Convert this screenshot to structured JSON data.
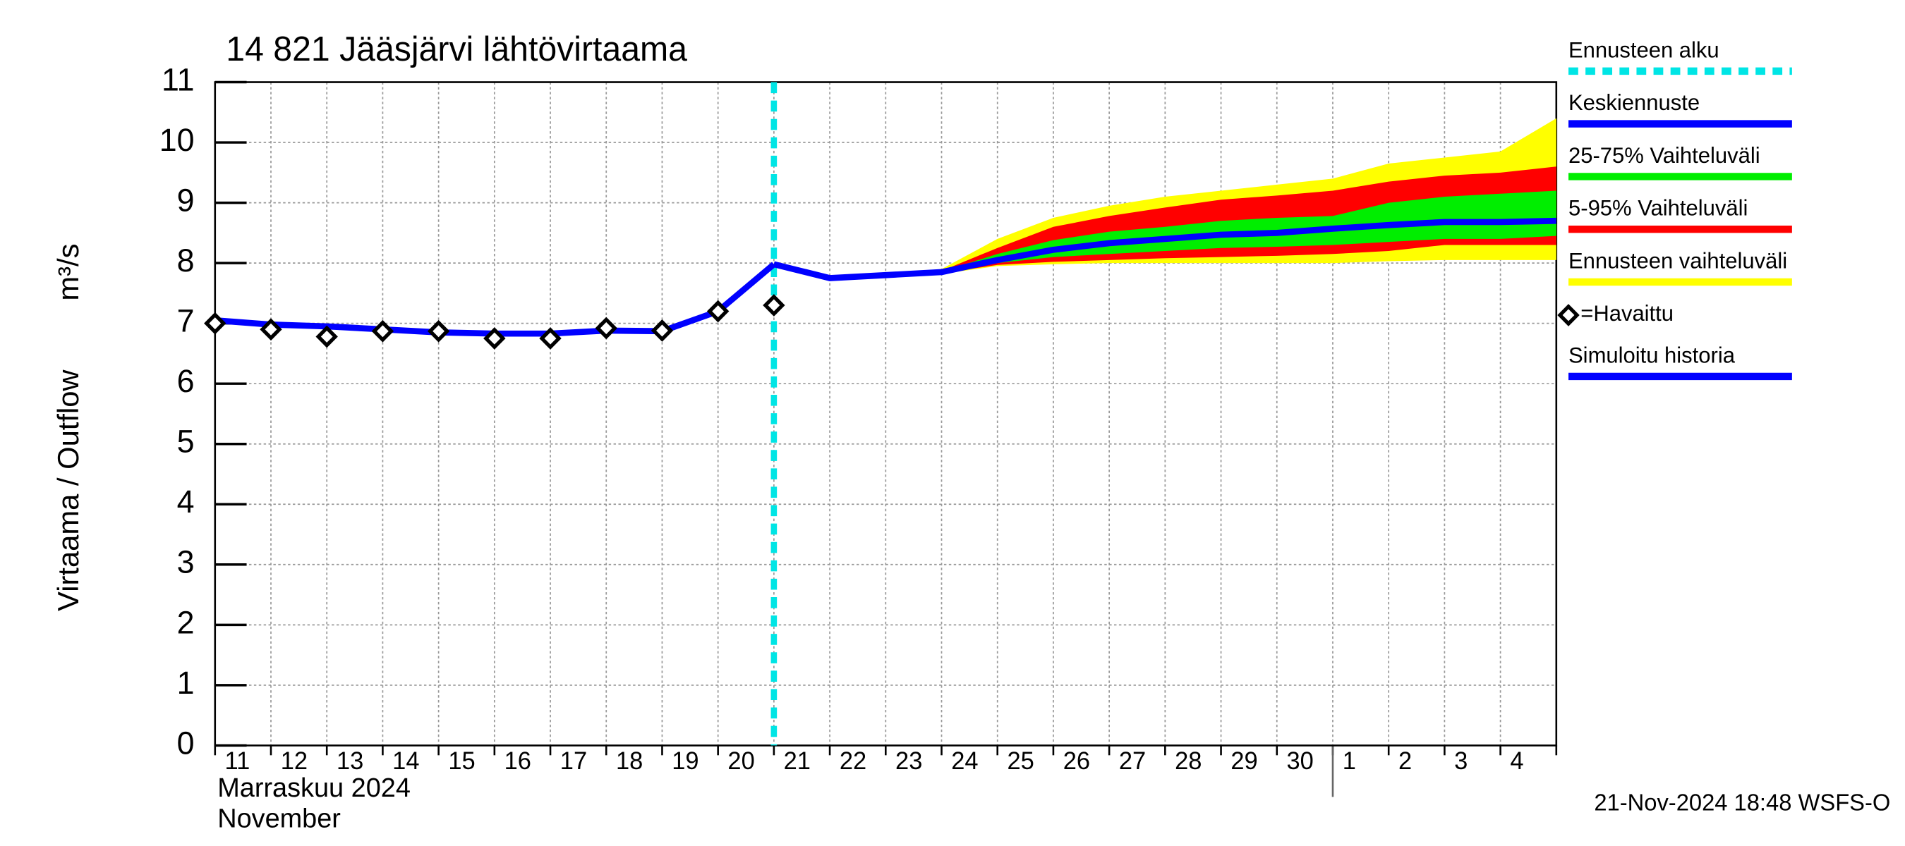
{
  "chart_data": {
    "type": "line",
    "title": "14 821 Jääsjärvi lähtövirtaama",
    "y_label": "Virtaama / Outflow",
    "y_unit": "m³/s",
    "month_label": "Marraskuu 2024",
    "month_label_en": "November",
    "timestamp": "21-Nov-2024 18:48 WSFS-O",
    "categories": [
      "11",
      "12",
      "13",
      "14",
      "15",
      "16",
      "17",
      "18",
      "19",
      "20",
      "21",
      "22",
      "23",
      "24",
      "25",
      "26",
      "27",
      "28",
      "29",
      "30",
      "1",
      "2",
      "3",
      "4",
      null
    ],
    "month_break": "1",
    "ylim": [
      0,
      11
    ],
    "yticks": [
      0,
      1,
      2,
      3,
      4,
      5,
      6,
      7,
      8,
      9,
      10,
      11
    ],
    "grid": true,
    "forecast_start": {
      "name": "Ennusteen alku",
      "color": "#00e5e5",
      "at": "21"
    },
    "bands": [
      {
        "name": "Ennusteen vaihteluväli",
        "color": "#ffff00",
        "low": [
          null,
          null,
          null,
          null,
          null,
          null,
          null,
          null,
          null,
          null,
          7.98,
          7.75,
          7.78,
          7.82,
          7.95,
          7.98,
          8.0,
          8.0,
          8.0,
          8.0,
          8.0,
          8.03,
          8.05,
          8.05,
          8.05
        ],
        "high": [
          null,
          null,
          null,
          null,
          null,
          null,
          null,
          null,
          null,
          null,
          7.98,
          7.78,
          7.83,
          7.9,
          8.4,
          8.75,
          8.95,
          9.1,
          9.2,
          9.3,
          9.4,
          9.65,
          9.75,
          9.85,
          10.4
        ]
      },
      {
        "name": "5-95% Vaihteluväli",
        "color": "#ff0000",
        "low": [
          null,
          null,
          null,
          null,
          null,
          null,
          null,
          null,
          null,
          null,
          7.98,
          7.75,
          7.78,
          7.83,
          7.97,
          8.02,
          8.05,
          8.08,
          8.1,
          8.12,
          8.15,
          8.2,
          8.3,
          8.3,
          8.3
        ],
        "high": [
          null,
          null,
          null,
          null,
          null,
          null,
          null,
          null,
          null,
          null,
          7.98,
          7.76,
          7.81,
          7.87,
          8.25,
          8.6,
          8.78,
          8.92,
          9.05,
          9.12,
          9.2,
          9.35,
          9.45,
          9.5,
          9.6
        ]
      },
      {
        "name": "25-75% Vaihteluväli",
        "color": "#00ee00",
        "low": [
          null,
          null,
          null,
          null,
          null,
          null,
          null,
          null,
          null,
          null,
          7.98,
          7.75,
          7.79,
          7.84,
          8.0,
          8.1,
          8.15,
          8.2,
          8.25,
          8.27,
          8.3,
          8.35,
          8.4,
          8.4,
          8.45
        ],
        "high": [
          null,
          null,
          null,
          null,
          null,
          null,
          null,
          null,
          null,
          null,
          7.98,
          7.76,
          7.8,
          7.86,
          8.15,
          8.38,
          8.52,
          8.6,
          8.7,
          8.75,
          8.78,
          9.0,
          9.1,
          9.15,
          9.2
        ]
      }
    ],
    "series": [
      {
        "name": "Keskiennuste",
        "color": "#0000ff",
        "values": [
          null,
          null,
          null,
          null,
          null,
          null,
          null,
          null,
          null,
          null,
          7.98,
          7.75,
          7.8,
          7.85,
          8.05,
          8.22,
          8.33,
          8.4,
          8.47,
          8.5,
          8.57,
          8.63,
          8.68,
          8.68,
          8.7
        ]
      },
      {
        "name": "=Havaittu",
        "color": "#000000",
        "marker": "diamond",
        "values": [
          7.0,
          6.9,
          6.78,
          6.87,
          6.87,
          6.75,
          6.75,
          6.92,
          6.88,
          7.2,
          7.3,
          null,
          null,
          null,
          null,
          null,
          null,
          null,
          null,
          null,
          null,
          null,
          null,
          null,
          null
        ]
      },
      {
        "name": "Simuloitu historia",
        "color": "#0000ff",
        "values": [
          7.05,
          6.98,
          6.95,
          6.9,
          6.85,
          6.83,
          6.83,
          6.88,
          6.87,
          7.2,
          7.98,
          null,
          null,
          null,
          null,
          null,
          null,
          null,
          null,
          null,
          null,
          null,
          null,
          null,
          null
        ]
      }
    ]
  }
}
